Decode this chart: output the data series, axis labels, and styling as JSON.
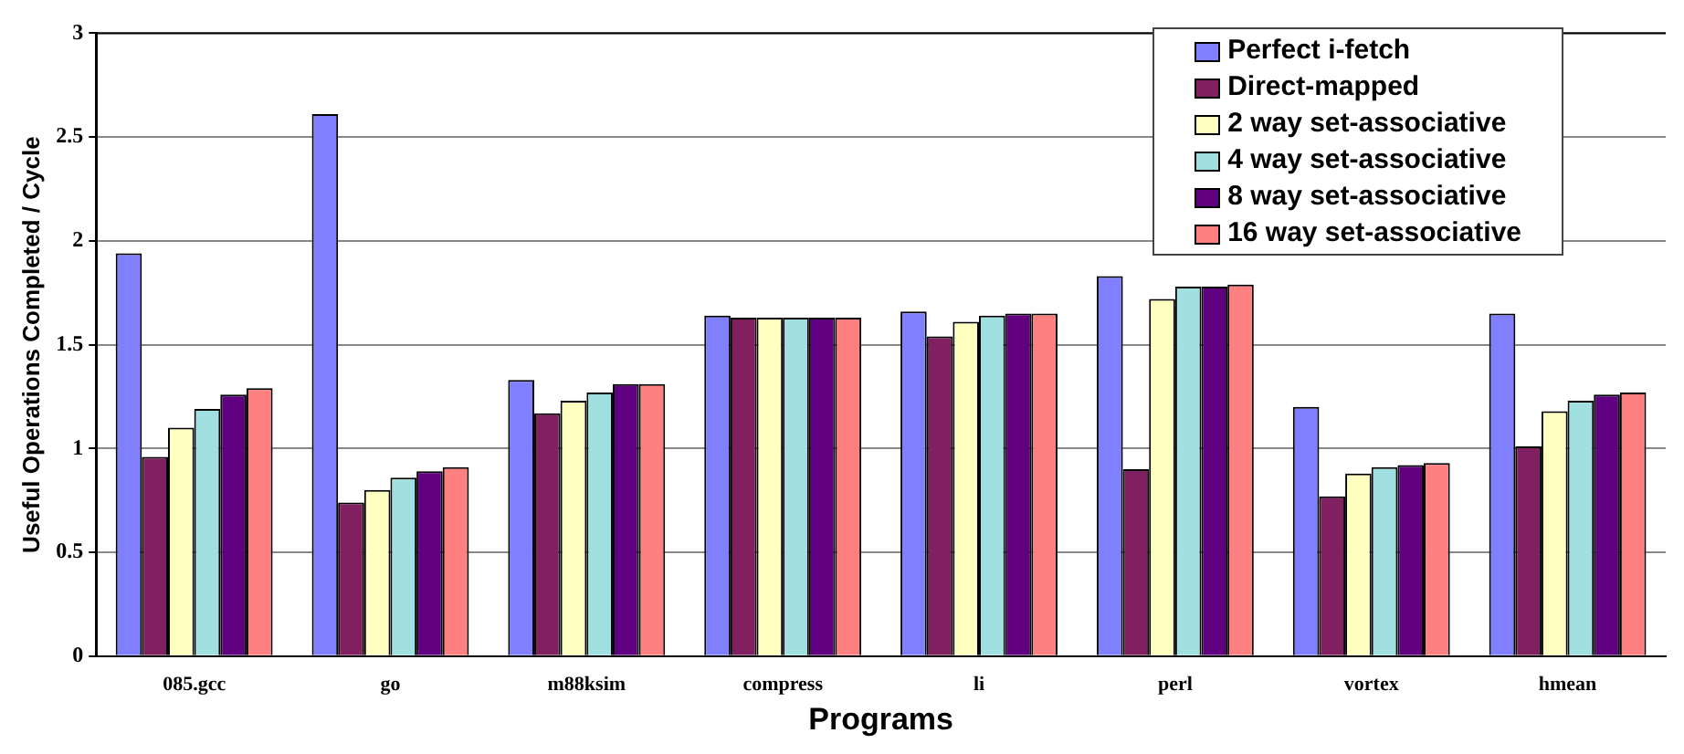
{
  "chart_data": {
    "type": "bar",
    "xlabel": "Programs",
    "ylabel": "Useful Operations Completed / Cycle",
    "categories": [
      "085.gcc",
      "go",
      "m88ksim",
      "compress",
      "li",
      "perl",
      "vortex",
      "hmean"
    ],
    "series": [
      {
        "name": "Perfect i-fetch",
        "color": "#8080ff",
        "values": [
          1.94,
          2.61,
          1.33,
          1.64,
          1.66,
          1.83,
          1.2,
          1.65
        ]
      },
      {
        "name": "Direct-mapped",
        "color": "#802060",
        "values": [
          0.96,
          0.74,
          1.17,
          1.63,
          1.54,
          0.9,
          0.77,
          1.01
        ]
      },
      {
        "name": "2 way set-associative",
        "color": "#ffffc0",
        "values": [
          1.1,
          0.8,
          1.23,
          1.63,
          1.61,
          1.72,
          0.88,
          1.18
        ]
      },
      {
        "name": "4 way set-associative",
        "color": "#a0e0e0",
        "values": [
          1.19,
          0.86,
          1.27,
          1.63,
          1.64,
          1.78,
          0.91,
          1.23
        ]
      },
      {
        "name": "8 way set-associative",
        "color": "#600080",
        "values": [
          1.26,
          0.89,
          1.31,
          1.63,
          1.65,
          1.78,
          0.92,
          1.26
        ]
      },
      {
        "name": "16 way set-associative",
        "color": "#ff8080",
        "values": [
          1.29,
          0.91,
          1.31,
          1.63,
          1.65,
          1.79,
          0.93,
          1.27
        ]
      }
    ],
    "ylim": [
      0,
      3
    ],
    "yticks": [
      0,
      0.5,
      1,
      1.5,
      2,
      2.5,
      3
    ],
    "grid": "y",
    "legend": "top right"
  }
}
